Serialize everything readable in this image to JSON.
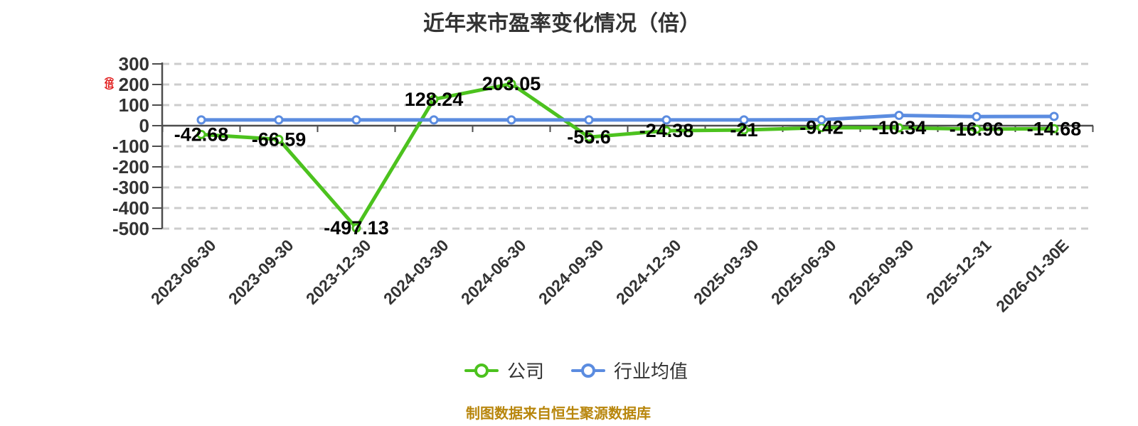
{
  "title": "近年来市盈率变化情况（倍）",
  "caption": "制图数据来自恒生聚源数据库",
  "colors": {
    "company": "#4cc21e",
    "industry": "#5b8ce0",
    "grid": "#cccccc",
    "axis": "#4d4d4d",
    "point_label": "#000000",
    "tick_text": "#333333",
    "title_text": "#333333",
    "caption_text": "#b8860c",
    "y_axis_name_red": "#e01515"
  },
  "chart_data": {
    "type": "line",
    "title": "近年来市盈率变化情况（倍）",
    "y_axis_name": "（倍）",
    "categories": [
      "2023-06-30",
      "2023-09-30",
      "2023-12-30",
      "2024-03-30",
      "2024-06-30",
      "2024-09-30",
      "2024-12-30",
      "2025-03-30",
      "2025-06-30",
      "2025-09-30",
      "2025-12-31",
      "2026-01-30E"
    ],
    "series": [
      {
        "name": "公司",
        "color": "#4cc21e",
        "values": [
          -42.68,
          -66.59,
          -497.13,
          128.24,
          203.05,
          -55.6,
          -24.38,
          -21,
          -9.42,
          -10.34,
          -16.96,
          -14.68
        ],
        "point_labels": [
          "-42.68",
          "-66.59",
          "-497.13",
          "128.24",
          "203.05",
          "-55.6",
          "-24.38",
          "-21",
          "-9.42",
          "-10.34",
          "-16.96",
          "-14.68"
        ]
      },
      {
        "name": "行业均值",
        "color": "#5b8ce0",
        "values": [
          28,
          28,
          28,
          28,
          28,
          28,
          28,
          28,
          29,
          50,
          44,
          45
        ],
        "point_labels": null
      }
    ],
    "ylim": [
      -500,
      300
    ],
    "yticks": [
      300,
      200,
      100,
      0,
      -100,
      -200,
      -300,
      -400,
      -500
    ],
    "grid": "dashed-horizontal",
    "legend_position": "bottom"
  }
}
